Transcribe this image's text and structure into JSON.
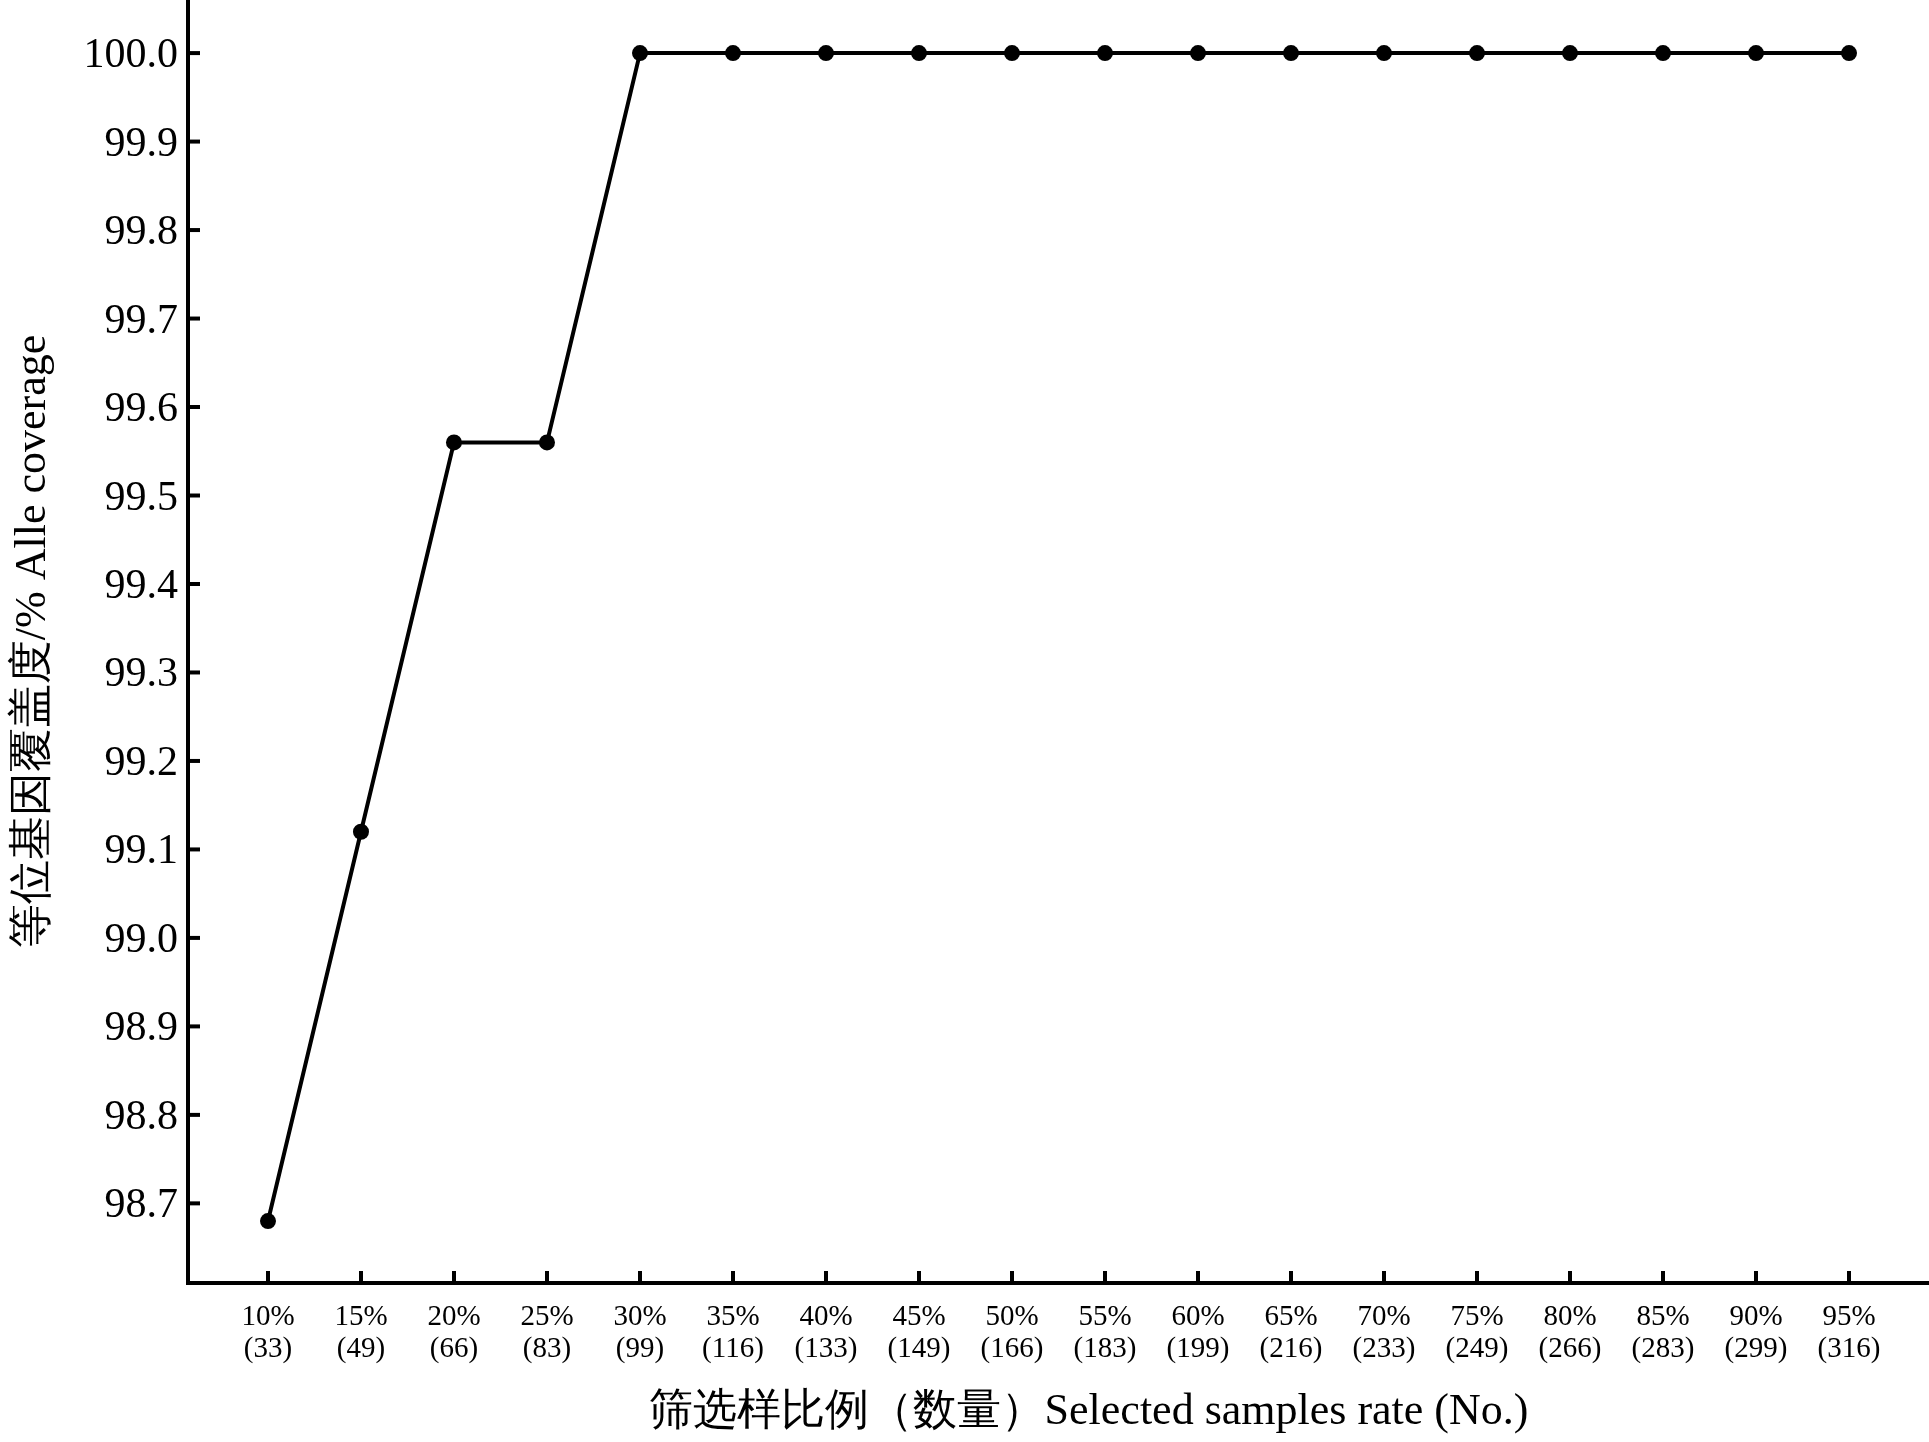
{
  "chart_data": {
    "type": "line",
    "xlabel": "筛选样比例（数量）Selected samples rate (No.)",
    "ylabel": "等位基因覆盖度/%  Alle coverage",
    "categories": [
      "10%\n(33)",
      "15%\n(49)",
      "20%\n(66)",
      "25%\n(83)",
      "30%\n(99)",
      "35%\n(116)",
      "40%\n(133)",
      "45%\n(149)",
      "50%\n(166)",
      "55%\n(183)",
      "60%\n(199)",
      "65%\n(216)",
      "70%\n(233)",
      "75%\n(249)",
      "80%\n(266)",
      "85%\n(283)",
      "90%\n(299)",
      "95%\n(316)"
    ],
    "series": [
      {
        "color": "#000000",
        "values": [
          98.68,
          99.12,
          99.56,
          99.56,
          100,
          100,
          100,
          100,
          100,
          100,
          100,
          100,
          100,
          100,
          100,
          100,
          100,
          100
        ]
      }
    ],
    "ylim": [
      98.61,
      100.06
    ],
    "yticks": [
      98.7,
      98.8,
      98.9,
      {
        "value": 99,
        "label": "99.0"
      },
      99.1,
      99.2,
      99.3,
      99.4,
      99.5,
      99.6,
      99.7,
      99.8,
      99.9,
      {
        "value": 100,
        "label": "100.0"
      }
    ],
    "marker": "circle",
    "line_style": "solid"
  }
}
